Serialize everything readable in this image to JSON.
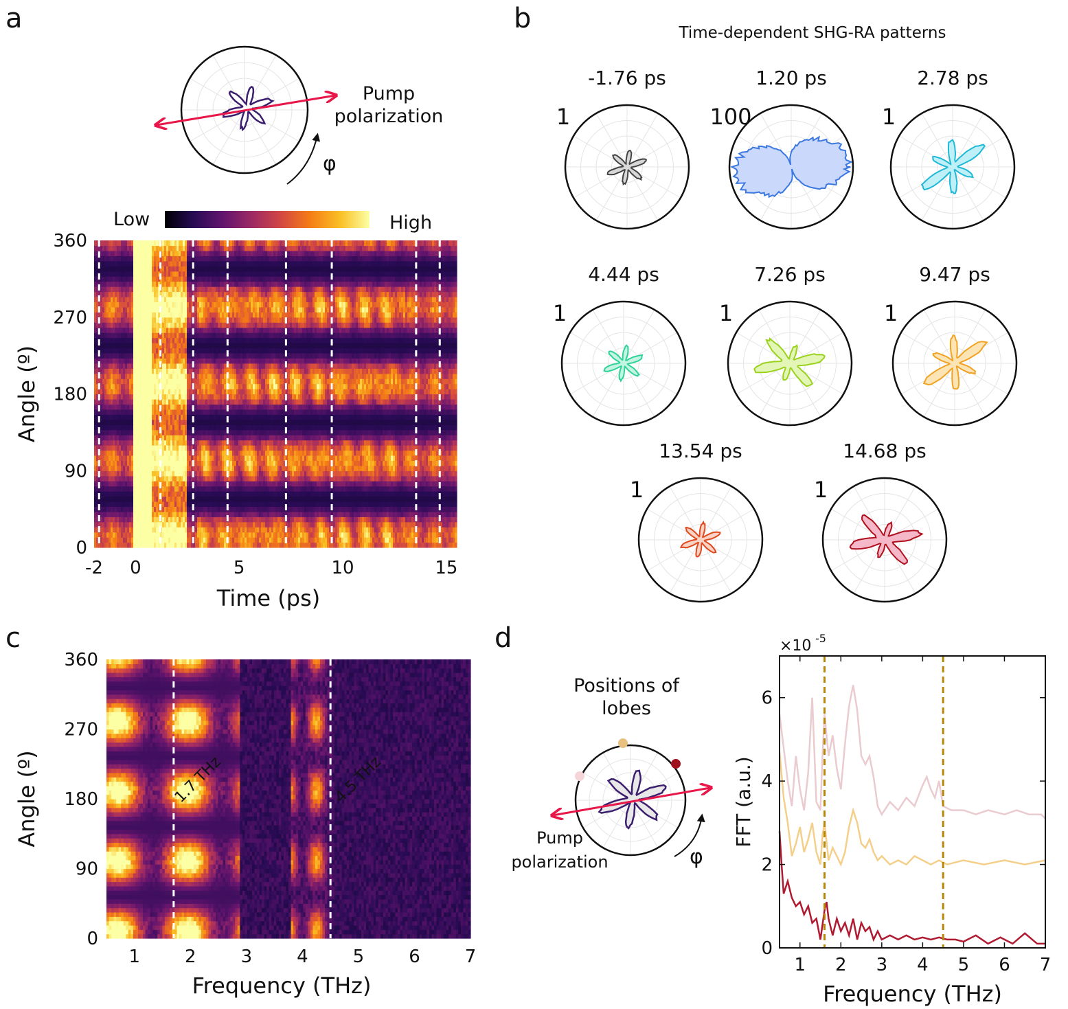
{
  "panel_labels": {
    "a": "a",
    "b": "b",
    "c": "c",
    "d": "d"
  },
  "colors": {
    "pump_arrow": "#e8174a",
    "dashed_line": "#ffffff",
    "fft_dashed": "#b8860b",
    "cmap": [
      "#000004",
      "#280b54",
      "#65156e",
      "#9f2a63",
      "#d44842",
      "#f57d15",
      "#fac127",
      "#fcffa4"
    ]
  },
  "panel_a": {
    "pump_label_1": "Pump",
    "pump_label_2": "polarization",
    "phi": "φ",
    "colorbar_low": "Low",
    "colorbar_high": "High"
  },
  "panel_b": {
    "title": "Time-dependent SHG-RA patterns",
    "polars": [
      {
        "time": "-1.76 ps",
        "scale": "1",
        "color": "#444444",
        "fill": "#d8d8d8",
        "kind": "small"
      },
      {
        "time": "1.20 ps",
        "scale": "100",
        "color": "#3b78e0",
        "fill": "#c9d8fb",
        "kind": "big"
      },
      {
        "time": "2.78 ps",
        "scale": "1",
        "color": "#1fb8d6",
        "fill": "#bff0f8",
        "kind": "diag"
      },
      {
        "time": "4.44 ps",
        "scale": "1",
        "color": "#2fd39a",
        "fill": "#c3f5e2",
        "kind": "small"
      },
      {
        "time": "7.26 ps",
        "scale": "1",
        "color": "#9ad21c",
        "fill": "#e3f6b8",
        "kind": "wide"
      },
      {
        "time": "9.47 ps",
        "scale": "1",
        "color": "#f0a323",
        "fill": "#fde4b4",
        "kind": "diag"
      },
      {
        "time": "13.54 ps",
        "scale": "1",
        "color": "#e0481e",
        "fill": "#fbd3c4",
        "kind": "small"
      },
      {
        "time": "14.68 ps",
        "scale": "1",
        "color": "#b0101e",
        "fill": "#f4b8c8",
        "kind": "wide"
      }
    ]
  },
  "panel_d": {
    "lobes_label_1": "Positions of",
    "lobes_label_2": "lobes",
    "pump_label_1": "Pump",
    "pump_label_2": "polarization",
    "phi": "φ"
  },
  "chart_data": [
    {
      "type": "heatmap",
      "panel": "a",
      "xlabel": "Time (ps)",
      "ylabel": "Angle (º)",
      "xlim": [
        -2,
        15.5
      ],
      "ylim": [
        0,
        360
      ],
      "xticks": [
        -2,
        0,
        5,
        10,
        15
      ],
      "yticks": [
        0,
        90,
        180,
        270,
        360
      ],
      "dashed_times_ps": [
        -1.76,
        1.2,
        2.78,
        4.44,
        7.26,
        9.47,
        13.54,
        14.68
      ],
      "colorbar": {
        "low": "Low",
        "high": "High"
      }
    },
    {
      "type": "heatmap",
      "panel": "c",
      "xlabel": "Frequency (THz)",
      "ylabel": "Angle (º)",
      "xlim": [
        0.5,
        7
      ],
      "ylim": [
        0,
        360
      ],
      "xticks": [
        1,
        2,
        3,
        4,
        5,
        6,
        7
      ],
      "yticks": [
        0,
        90,
        180,
        270,
        360
      ],
      "annotations": [
        {
          "x": 1.7,
          "text": "1.7 THz"
        },
        {
          "x": 4.5,
          "text": "4.5 THz"
        }
      ]
    },
    {
      "type": "line",
      "panel": "d",
      "xlabel": "Frequency (THz)",
      "ylabel": "FFT (a.u.)",
      "exponent_label": "×10",
      "exponent_power": "-5",
      "xlim": [
        0.5,
        7
      ],
      "ylim": [
        0,
        7
      ],
      "xticks": [
        1,
        2,
        3,
        4,
        5,
        6,
        7
      ],
      "yticks": [
        0,
        2,
        4,
        6
      ],
      "vlines": [
        1.6,
        4.5
      ],
      "series": [
        {
          "color": "#eacbd0",
          "x": [
            0.5,
            0.6,
            0.7,
            0.8,
            0.9,
            1.0,
            1.1,
            1.2,
            1.3,
            1.4,
            1.5,
            1.55,
            1.6,
            1.7,
            1.8,
            1.9,
            2.0,
            2.1,
            2.2,
            2.3,
            2.4,
            2.5,
            2.6,
            2.7,
            2.8,
            2.9,
            3.0,
            3.2,
            3.4,
            3.6,
            3.8,
            4.0,
            4.1,
            4.2,
            4.3,
            4.4,
            4.5,
            4.7,
            5.0,
            5.3,
            5.6,
            6.0,
            6.3,
            6.6,
            6.9,
            7.0
          ],
          "values": [
            5.6,
            4.8,
            4.0,
            3.4,
            4.6,
            3.8,
            3.3,
            4.2,
            6.0,
            3.5,
            3.3,
            4.6,
            5.6,
            4.6,
            5.1,
            4.3,
            3.8,
            4.9,
            5.8,
            6.3,
            5.7,
            4.6,
            4.4,
            4.6,
            4.1,
            3.4,
            3.2,
            3.5,
            3.3,
            3.6,
            3.4,
            3.9,
            4.1,
            3.8,
            3.6,
            4.0,
            3.4,
            3.3,
            3.3,
            3.2,
            3.3,
            3.2,
            3.3,
            3.2,
            3.2,
            3.1
          ]
        },
        {
          "color": "#f4cf8a",
          "x": [
            0.5,
            0.6,
            0.7,
            0.8,
            0.9,
            1.0,
            1.1,
            1.2,
            1.3,
            1.4,
            1.5,
            1.55,
            1.6,
            1.7,
            1.8,
            1.9,
            2.0,
            2.1,
            2.2,
            2.3,
            2.4,
            2.5,
            2.6,
            2.7,
            2.8,
            2.9,
            3.0,
            3.2,
            3.4,
            3.6,
            3.8,
            4.0,
            4.2,
            4.4,
            4.6,
            5.0,
            5.5,
            6.0,
            6.5,
            7.0
          ],
          "values": [
            4.7,
            3.6,
            3.0,
            2.2,
            2.5,
            2.9,
            2.3,
            2.6,
            3.0,
            2.3,
            2.0,
            2.7,
            3.0,
            2.1,
            2.4,
            2.2,
            2.0,
            2.3,
            2.9,
            3.3,
            3.0,
            2.5,
            2.4,
            2.6,
            2.3,
            2.1,
            2.2,
            2.0,
            2.1,
            2.0,
            2.2,
            2.1,
            2.0,
            2.1,
            2.0,
            2.1,
            2.0,
            2.1,
            2.0,
            2.1
          ]
        },
        {
          "color": "#b01a30",
          "x": [
            0.5,
            0.55,
            0.6,
            0.7,
            0.8,
            0.9,
            1.0,
            1.1,
            1.2,
            1.3,
            1.4,
            1.5,
            1.6,
            1.65,
            1.7,
            1.8,
            1.9,
            2.0,
            2.1,
            2.2,
            2.3,
            2.4,
            2.5,
            2.6,
            2.7,
            2.8,
            2.9,
            3.0,
            3.2,
            3.4,
            3.6,
            3.8,
            4.0,
            4.2,
            4.4,
            4.6,
            4.8,
            5.0,
            5.3,
            5.6,
            5.9,
            6.2,
            6.5,
            6.8,
            7.0
          ],
          "values": [
            2.8,
            2.0,
            1.3,
            1.6,
            1.2,
            1.0,
            1.1,
            0.8,
            1.0,
            0.6,
            0.7,
            0.2,
            0.9,
            1.1,
            0.7,
            0.3,
            0.7,
            0.4,
            0.6,
            0.3,
            0.7,
            0.2,
            0.6,
            0.4,
            0.5,
            0.2,
            0.4,
            0.2,
            0.3,
            0.2,
            0.3,
            0.2,
            0.25,
            0.2,
            0.25,
            0.2,
            0.2,
            0.15,
            0.3,
            0.1,
            0.25,
            0.1,
            0.35,
            0.1,
            0.1
          ]
        }
      ]
    }
  ]
}
